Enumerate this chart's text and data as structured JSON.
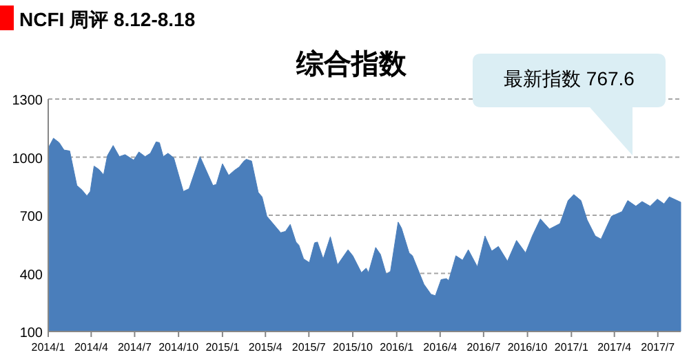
{
  "chart_data": {
    "type": "area",
    "title": "NCFI 周评 8.12-8.18",
    "subtitle": "综合指数",
    "annotations": [
      "最新指数 767.6"
    ],
    "x": [
      "2014-01-03",
      "2014-01-12",
      "2014-01-24",
      "2014-02-03",
      "2014-02-15",
      "2014-03-02",
      "2014-03-13",
      "2014-03-23",
      "2014-03-30",
      "2014-04-07",
      "2014-04-17",
      "2014-04-27",
      "2014-05-05",
      "2014-05-17",
      "2014-05-30",
      "2014-06-11",
      "2014-06-29",
      "2014-07-10",
      "2014-07-23",
      "2014-08-03",
      "2014-08-15",
      "2014-08-22",
      "2014-08-30",
      "2014-09-09",
      "2014-09-21",
      "2014-10-11",
      "2014-10-23",
      "2014-11-15",
      "2014-12-12",
      "2014-12-19",
      "2015-01-01",
      "2015-01-14",
      "2015-01-26",
      "2015-02-05",
      "2015-02-15",
      "2015-02-20",
      "2015-03-03",
      "2015-03-17",
      "2015-03-25",
      "2015-04-04",
      "2015-05-03",
      "2015-05-13",
      "2015-05-23",
      "2015-06-04",
      "2015-06-10",
      "2015-06-20",
      "2015-07-02",
      "2015-07-13",
      "2015-07-19",
      "2015-07-31",
      "2015-08-15",
      "2015-08-30",
      "2015-09-21",
      "2015-10-01",
      "2015-10-19",
      "2015-10-29",
      "2015-11-03",
      "2015-11-18",
      "2015-11-28",
      "2015-12-10",
      "2015-12-19",
      "2016-01-04",
      "2016-01-11",
      "2016-01-27",
      "2016-02-03",
      "2016-02-27",
      "2016-03-13",
      "2016-03-22",
      "2016-04-03",
      "2016-04-14",
      "2016-04-19",
      "2016-05-04",
      "2016-05-18",
      "2016-05-30",
      "2016-06-18",
      "2016-07-04",
      "2016-07-18",
      "2016-08-01",
      "2016-08-20",
      "2016-09-08",
      "2016-09-27",
      "2016-10-11",
      "2016-10-28",
      "2016-11-16",
      "2016-12-08",
      "2016-12-25",
      "2017-01-06",
      "2017-01-21",
      "2017-02-03",
      "2017-02-20",
      "2017-03-04",
      "2017-03-26",
      "2017-04-17",
      "2017-04-29",
      "2017-05-16",
      "2017-05-29",
      "2017-06-15",
      "2017-06-30",
      "2017-07-14",
      "2017-07-25",
      "2017-08-18"
    ],
    "values": [
      1056,
      1098,
      1075,
      1037,
      1032,
      854,
      830,
      800,
      823,
      954,
      937,
      909,
      1008,
      1060,
      1003,
      1013,
      985,
      1027,
      1003,
      1020,
      1079,
      1075,
      1003,
      1020,
      996,
      823,
      837,
      1003,
      854,
      859,
      966,
      906,
      932,
      949,
      980,
      989,
      980,
      818,
      795,
      695,
      610,
      617,
      653,
      562,
      546,
      475,
      456,
      558,
      562,
      475,
      589,
      444,
      522,
      491,
      404,
      427,
      404,
      534,
      498,
      396,
      411,
      665,
      634,
      506,
      491,
      344,
      292,
      285,
      368,
      373,
      363,
      491,
      468,
      522,
      434,
      593,
      515,
      539,
      463,
      570,
      506,
      593,
      681,
      629,
      657,
      776,
      807,
      776,
      676,
      593,
      577,
      695,
      719,
      776,
      747,
      771,
      747,
      783,
      759,
      795,
      767.6
    ],
    "color": "#4a7ebb",
    "xlim": [
      "2014-01-01",
      "2017-08-18"
    ],
    "xticks": [
      {
        "value": "2014-01-01",
        "label": "2014/1"
      },
      {
        "value": "2014-04-01",
        "label": "2014/4"
      },
      {
        "value": "2014-07-01",
        "label": "2014/7"
      },
      {
        "value": "2014-10-01",
        "label": "2014/10"
      },
      {
        "value": "2015-01-01",
        "label": "2015/1"
      },
      {
        "value": "2015-04-01",
        "label": "2015/4"
      },
      {
        "value": "2015-07-01",
        "label": "2015/7"
      },
      {
        "value": "2015-10-01",
        "label": "2015/10"
      },
      {
        "value": "2016-01-01",
        "label": "2016/1"
      },
      {
        "value": "2016-04-01",
        "label": "2016/4"
      },
      {
        "value": "2016-07-01",
        "label": "2016/7"
      },
      {
        "value": "2016-10-01",
        "label": "2016/10"
      },
      {
        "value": "2017-01-01",
        "label": "2017/1"
      },
      {
        "value": "2017-04-01",
        "label": "2017/4"
      },
      {
        "value": "2017-07-01",
        "label": "2017/7"
      }
    ],
    "ylim": [
      100,
      1300
    ],
    "yticks": [
      100,
      400,
      700,
      1000,
      1300
    ],
    "grid": "y"
  }
}
